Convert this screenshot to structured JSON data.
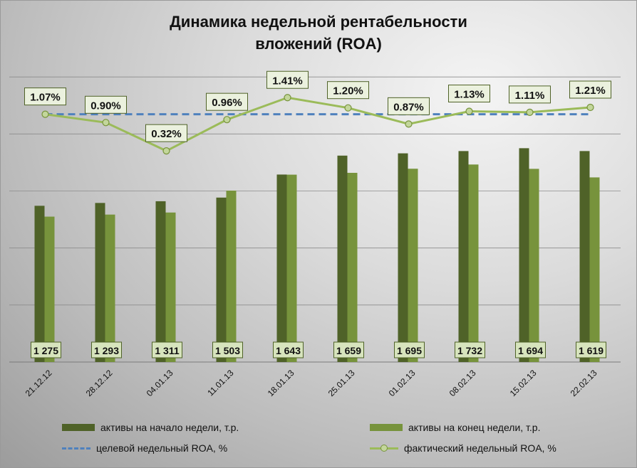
{
  "chart_data": {
    "type": "bar",
    "title_lines": [
      "Динамика недельной рентабельности",
      "вложений (ROA)"
    ],
    "categories": [
      "21.12.12",
      "28.12.12",
      "04.01.13",
      "11.01.13",
      "18.01.13",
      "25.01.13",
      "01.02.13",
      "08.02.13",
      "15.02.13",
      "22.02.13"
    ],
    "series": [
      {
        "name": "активы на начало  недели, т.р.",
        "type": "bar",
        "color": "#4f6228",
        "values": [
          1370,
          1395,
          1410,
          1442,
          1644,
          1810,
          1830,
          1850,
          1875,
          1850
        ]
      },
      {
        "name": "активы на конец недели, т.р.",
        "type": "bar",
        "color": "#77933c",
        "values": [
          1275,
          1293,
          1311,
          1503,
          1643,
          1659,
          1695,
          1732,
          1694,
          1619
        ],
        "value_labels": [
          "1 275",
          "1 293",
          "1 311",
          "1 503",
          "1 643",
          "1 659",
          "1 695",
          "1 732",
          "1 694",
          "1 619"
        ]
      },
      {
        "name": "целевой недельный ROA, %",
        "type": "line",
        "style": "dashed",
        "color": "#4f81bd",
        "values": [
          1.07,
          1.07,
          1.07,
          1.07,
          1.07,
          1.07,
          1.07,
          1.07,
          1.07,
          1.07
        ]
      },
      {
        "name": "фактический недельный ROA, %",
        "type": "line",
        "marker": "circle",
        "color": "#9bbb59",
        "values": [
          1.07,
          0.9,
          0.32,
          0.96,
          1.41,
          1.2,
          0.87,
          1.13,
          1.11,
          1.21
        ],
        "value_labels": [
          "1.07%",
          "0.90%",
          "0.32%",
          "0.96%",
          "1.41%",
          "1.20%",
          "0.87%",
          "1.13%",
          "1.11%",
          "1.21%"
        ]
      }
    ],
    "ylim_left": [
      0,
      3000
    ],
    "ylim_right": [
      -4,
      3
    ],
    "grid": true,
    "axis_tick_labels_shown": false,
    "legend_position": "bottom"
  }
}
